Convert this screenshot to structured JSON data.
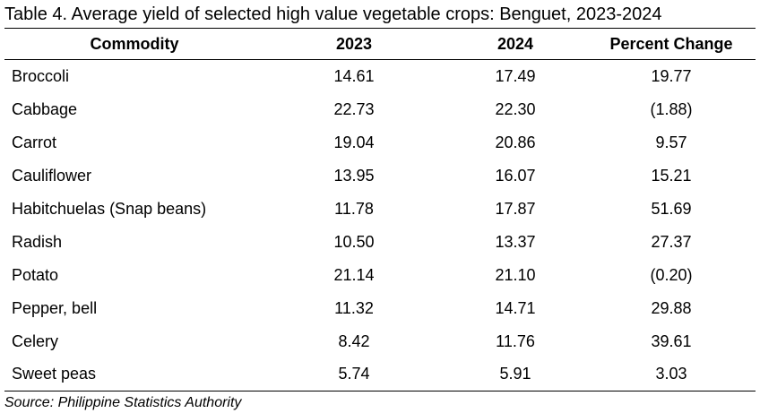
{
  "title": "Table 4. Average yield of selected high value vegetable crops: Benguet, 2023-2024",
  "columns": [
    "Commodity",
    "2023",
    "2024",
    "Percent Change"
  ],
  "rows": [
    {
      "commodity": "Broccoli",
      "y2023": "14.61",
      "y2024": "17.49",
      "pct": "19.77"
    },
    {
      "commodity": "Cabbage",
      "y2023": "22.73",
      "y2024": "22.30",
      "pct": "(1.88)"
    },
    {
      "commodity": "Carrot",
      "y2023": "19.04",
      "y2024": "20.86",
      "pct": "9.57"
    },
    {
      "commodity": "Cauliflower",
      "y2023": "13.95",
      "y2024": "16.07",
      "pct": "15.21"
    },
    {
      "commodity": "Habitchuelas (Snap beans)",
      "y2023": "11.78",
      "y2024": "17.87",
      "pct": "51.69"
    },
    {
      "commodity": "Radish",
      "y2023": "10.50",
      "y2024": "13.37",
      "pct": "27.37"
    },
    {
      "commodity": "Potato",
      "y2023": "21.14",
      "y2024": "21.10",
      "pct": "(0.20)"
    },
    {
      "commodity": "Pepper, bell",
      "y2023": "11.32",
      "y2024": "14.71",
      "pct": "29.88"
    },
    {
      "commodity": "Celery",
      "y2023": "8.42",
      "y2024": "11.76",
      "pct": "39.61"
    },
    {
      "commodity": "Sweet peas",
      "y2023": "5.74",
      "y2024": "5.91",
      "pct": "3.03"
    }
  ],
  "source": "Source: Philippine Statistics Authority"
}
